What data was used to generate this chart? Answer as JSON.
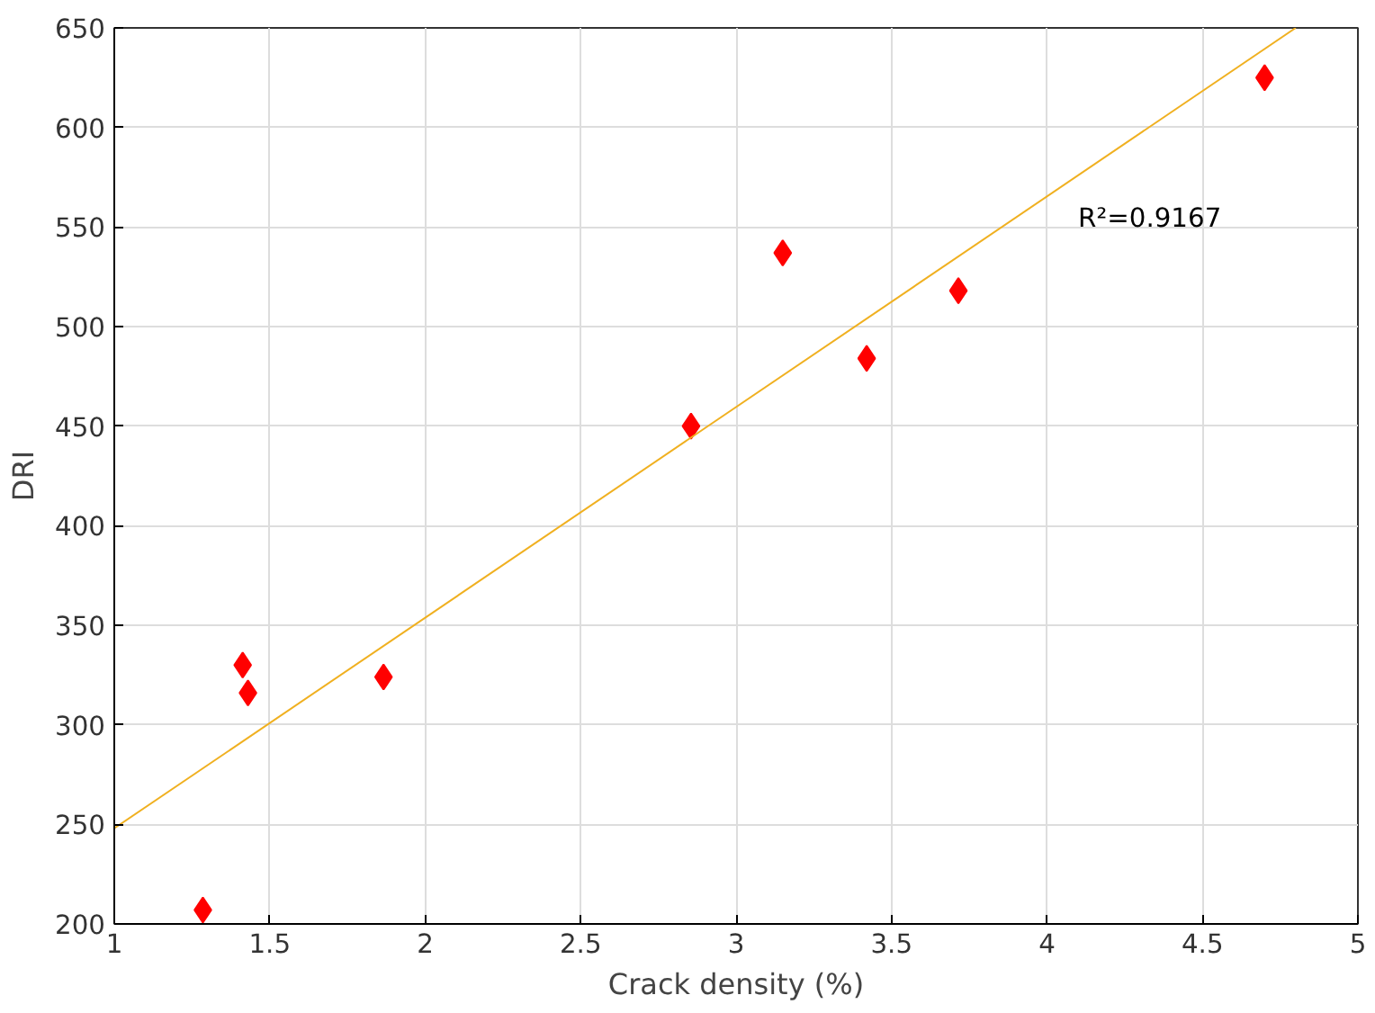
{
  "chart_data": {
    "type": "scatter",
    "xlabel": "Crack density (%)",
    "ylabel": "DRI",
    "xlim": [
      1,
      5
    ],
    "xticks": [
      1,
      1.5,
      2,
      2.5,
      3,
      3.5,
      4,
      4.5,
      5
    ],
    "ylim": [
      200,
      650
    ],
    "yticks": [
      200,
      250,
      300,
      350,
      400,
      450,
      500,
      550,
      600,
      650
    ],
    "grid": true,
    "series": [
      {
        "marker": "diamond",
        "color": "#ff0000",
        "x": [
          1.285,
          1.413,
          1.43,
          1.866,
          2.855,
          3.15,
          3.42,
          3.715,
          4.7
        ],
        "values": [
          207,
          330,
          316,
          324,
          450,
          537,
          484,
          518,
          625
        ]
      },
      {
        "type": "line",
        "color": "#f0b020",
        "x": [
          1,
          4.8
        ],
        "values": [
          248,
          650
        ]
      }
    ],
    "annotations": [
      "R²=0.9167"
    ]
  }
}
